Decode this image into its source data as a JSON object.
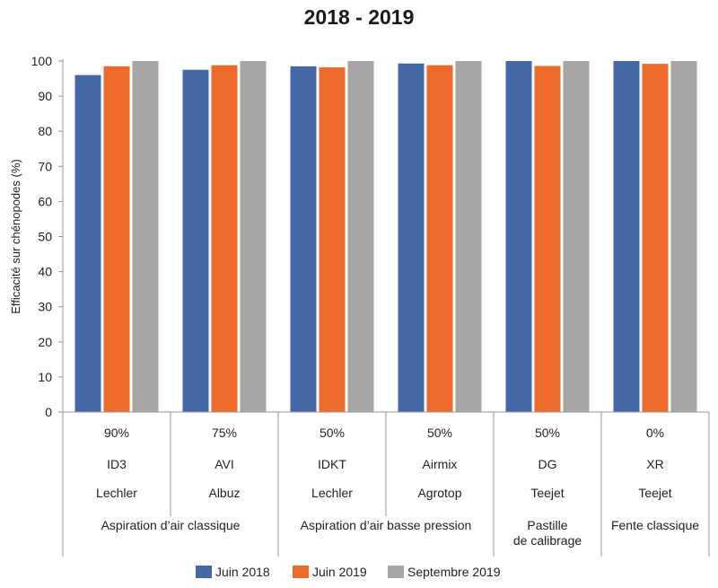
{
  "chart_data": {
    "type": "bar",
    "title": "2018 - 2019",
    "ylabel": "Efficacité sur chénopodes (%)",
    "xlabel": "",
    "ylim": [
      0,
      100
    ],
    "yticks": [
      0,
      10,
      20,
      30,
      40,
      50,
      60,
      70,
      80,
      90,
      100
    ],
    "grid": false,
    "legend_position": "bottom",
    "categories": [
      {
        "reduction": "90%",
        "model": "ID3",
        "brand": "Lechler"
      },
      {
        "reduction": "75%",
        "model": "AVI",
        "brand": "Albuz"
      },
      {
        "reduction": "50%",
        "model": "IDKT",
        "brand": "Lechler"
      },
      {
        "reduction": "50%",
        "model": "Airmix",
        "brand": "Agrotop"
      },
      {
        "reduction": "50%",
        "model": "DG",
        "brand": "Teejet"
      },
      {
        "reduction": "0%",
        "model": "XR",
        "brand": "Teejet"
      }
    ],
    "groups": [
      {
        "label": "Aspiration d’air classique",
        "span": [
          0,
          1
        ]
      },
      {
        "label": "Aspiration d’air basse pression",
        "span": [
          2,
          3
        ]
      },
      {
        "label": "Pastille de calibrage",
        "lines": [
          "Pastille",
          "de calibrage"
        ],
        "span": [
          4,
          4
        ]
      },
      {
        "label": "Fente classique",
        "span": [
          5,
          5
        ]
      }
    ],
    "series": [
      {
        "name": "Juin 2018",
        "color": "#4467a6",
        "values": [
          96,
          97.5,
          98.5,
          99.3,
          100,
          100
        ]
      },
      {
        "name": "Juin 2019",
        "color": "#ec6a2c",
        "values": [
          98.5,
          98.8,
          98.2,
          98.8,
          98.6,
          99.2
        ]
      },
      {
        "name": "Septembre 2019",
        "color": "#a6a6a6",
        "values": [
          100,
          100,
          100,
          100,
          100,
          100
        ]
      }
    ]
  }
}
